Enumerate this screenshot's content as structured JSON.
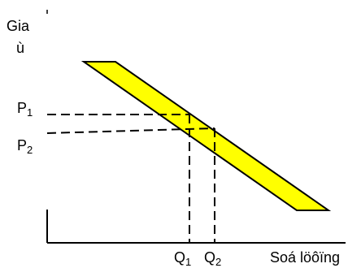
{
  "y_axis": {
    "label_line1": "Gia",
    "label_line2": "ù"
  },
  "x_axis": {
    "label": "Soá löôïng"
  },
  "prices": [
    {
      "letter": "P",
      "sub": "1"
    },
    {
      "letter": "P",
      "sub": "2"
    }
  ],
  "quantities": [
    {
      "letter": "Q",
      "sub": "1"
    },
    {
      "letter": "Q",
      "sub": "2"
    }
  ],
  "colors": {
    "band_fill": "#ffff00",
    "line": "#000000"
  }
}
